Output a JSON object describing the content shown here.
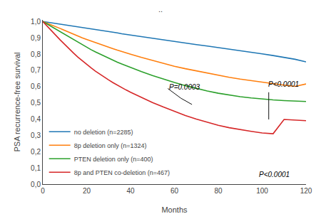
{
  "chart_data": {
    "type": "line",
    "subtitle": "..",
    "xlabel": "Months",
    "ylabel": "PSA recurrence-free survival",
    "xlim": [
      0,
      120
    ],
    "ylim": [
      0.0,
      1.01
    ],
    "xticks": [
      0,
      20,
      40,
      60,
      80,
      100,
      120
    ],
    "yticks": [
      {
        "value": 0.0,
        "label": "0,0"
      },
      {
        "value": 0.1,
        "label": "0,1"
      },
      {
        "value": 0.2,
        "label": "0,2"
      },
      {
        "value": 0.3,
        "label": "0,3"
      },
      {
        "value": 0.4,
        "label": "0,4"
      },
      {
        "value": 0.5,
        "label": "0,5"
      },
      {
        "value": 0.6,
        "label": "0,6"
      },
      {
        "value": 0.7,
        "label": "0,7"
      },
      {
        "value": 0.8,
        "label": "0,8"
      },
      {
        "value": 0.9,
        "label": "0,9"
      },
      {
        "value": 1.0,
        "label": "1,0"
      }
    ],
    "grid": false,
    "legend": "lower left",
    "x": [
      0,
      1,
      2,
      3,
      4,
      5,
      6,
      7,
      8,
      9,
      10,
      12,
      14,
      16,
      18,
      20,
      22,
      24,
      26,
      28,
      30,
      32,
      34,
      36,
      38,
      40,
      45,
      50,
      55,
      60,
      65,
      70,
      75,
      80,
      85,
      90,
      95,
      100,
      105,
      110,
      115,
      120
    ],
    "series": [
      {
        "name": "no deletion (n=2285)",
        "values": [
          1.0,
          0.998,
          0.996,
          0.994,
          0.992,
          0.989,
          0.987,
          0.985,
          0.983,
          0.981,
          0.979,
          0.975,
          0.971,
          0.968,
          0.964,
          0.96,
          0.956,
          0.952,
          0.948,
          0.944,
          0.94,
          0.935,
          0.93,
          0.925,
          0.921,
          0.917,
          0.906,
          0.896,
          0.886,
          0.877,
          0.868,
          0.858,
          0.849,
          0.84,
          0.831,
          0.822,
          0.812,
          0.801,
          0.791,
          0.781,
          0.768,
          0.752
        ]
      },
      {
        "name": "8p deletion only (n=1324)",
        "values": [
          1.0,
          0.995,
          0.99,
          0.985,
          0.98,
          0.974,
          0.969,
          0.963,
          0.957,
          0.951,
          0.945,
          0.933,
          0.921,
          0.91,
          0.9,
          0.89,
          0.88,
          0.87,
          0.86,
          0.851,
          0.842,
          0.833,
          0.824,
          0.815,
          0.807,
          0.799,
          0.779,
          0.76,
          0.742,
          0.725,
          0.71,
          0.696,
          0.682,
          0.669,
          0.657,
          0.646,
          0.636,
          0.626,
          0.617,
          0.609,
          0.601,
          0.616
        ]
      },
      {
        "name": "PTEN deletion only (n=400)",
        "values": [
          1.0,
          0.992,
          0.985,
          0.977,
          0.97,
          0.962,
          0.954,
          0.946,
          0.937,
          0.929,
          0.921,
          0.904,
          0.888,
          0.872,
          0.857,
          0.842,
          0.827,
          0.813,
          0.8,
          0.787,
          0.774,
          0.762,
          0.75,
          0.739,
          0.728,
          0.717,
          0.692,
          0.668,
          0.646,
          0.625,
          0.606,
          0.589,
          0.573,
          0.559,
          0.548,
          0.538,
          0.53,
          0.523,
          0.518,
          0.514,
          0.511,
          0.508
        ]
      },
      {
        "name": "8p and PTEN co-deletion (n=467)",
        "values": [
          1.0,
          0.985,
          0.97,
          0.956,
          0.942,
          0.928,
          0.914,
          0.9,
          0.886,
          0.872,
          0.858,
          0.831,
          0.806,
          0.781,
          0.758,
          0.736,
          0.715,
          0.695,
          0.676,
          0.658,
          0.641,
          0.624,
          0.608,
          0.593,
          0.579,
          0.565,
          0.532,
          0.502,
          0.474,
          0.447,
          0.422,
          0.4,
          0.38,
          0.362,
          0.347,
          0.335,
          0.325,
          0.315,
          0.31,
          0.398,
          0.395,
          0.39
        ]
      }
    ],
    "lines": [
      {
        "x": [
          103,
          103
        ],
        "y": [
          0.398,
          0.565
        ],
        "color": "#111111"
      },
      {
        "x": [
          57,
          63,
          68
        ],
        "y": [
          0.588,
          0.528,
          0.49
        ],
        "color": "#111111"
      }
    ],
    "annotations": [
      {
        "text": "P=0.0003",
        "x": 57,
        "y": 0.565
      },
      {
        "text": "P<0.0001",
        "x": 102,
        "y": 0.582
      },
      {
        "text": "P<0.0001",
        "x": 98,
        "y": 0.028
      }
    ]
  }
}
